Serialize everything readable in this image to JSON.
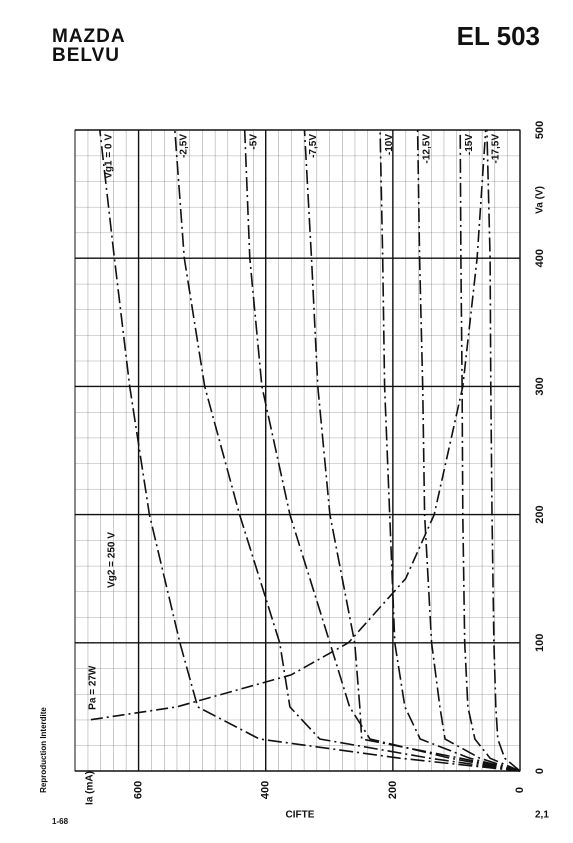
{
  "header": {
    "brand_line1": "MAZDA",
    "brand_line2": "BELVU",
    "tube": "EL 503"
  },
  "footer": {
    "left_code": "1-68",
    "side_note": "Reproduction Interdite",
    "center": "CIFTE",
    "right": "2,1"
  },
  "chart_data": {
    "type": "line",
    "x_label": "Va (V)",
    "y_label": "Ia (mA)",
    "annotations": [
      "Vg2 = 250 V"
    ],
    "x": [
      0,
      10,
      25,
      50,
      100,
      200,
      300,
      400,
      500
    ],
    "xlim": [
      0,
      500
    ],
    "xticks": [
      0,
      100,
      200,
      300,
      400,
      500
    ],
    "ylim": [
      0,
      700
    ],
    "yticks": [
      0,
      200,
      400,
      600
    ],
    "grid": true,
    "series": [
      {
        "name": "Vg1 = 0 V",
        "color": "#111",
        "values": [
          0,
          189,
          410,
          507,
          535,
          583,
          614,
          638,
          661
        ]
      },
      {
        "name": "-2,5V",
        "color": "#111",
        "values": [
          0,
          142,
          315,
          362,
          378,
          441,
          496,
          528,
          543
        ]
      },
      {
        "name": "-5V",
        "color": "#111",
        "values": [
          0,
          110,
          236,
          268,
          299,
          362,
          406,
          425,
          433
        ]
      },
      {
        "name": "-7,5V",
        "color": "#111",
        "values": [
          0,
          94,
          249,
          252,
          260,
          299,
          318,
          328,
          339
        ]
      },
      {
        "name": "-10V",
        "color": "#111",
        "values": [
          0,
          79,
          157,
          181,
          197,
          205,
          213,
          216,
          220
        ]
      },
      {
        "name": "-12,5V",
        "color": "#111",
        "values": [
          0,
          63,
          118,
          126,
          139,
          150,
          153,
          158,
          161
        ]
      },
      {
        "name": "-15V",
        "color": "#111",
        "values": [
          0,
          47,
          71,
          82,
          87,
          90,
          91,
          93,
          94
        ]
      },
      {
        "name": "-17,5V",
        "color": "#111",
        "values": [
          0,
          24,
          35,
          38,
          41,
          44,
          46,
          47,
          52
        ]
      }
    ],
    "power_curve": {
      "name": "Pa = 27W",
      "x": [
        40,
        50,
        75,
        100,
        150,
        200,
        300,
        400,
        500
      ],
      "values": [
        675,
        540,
        360,
        270,
        180,
        135,
        90,
        67.5,
        54
      ]
    }
  }
}
